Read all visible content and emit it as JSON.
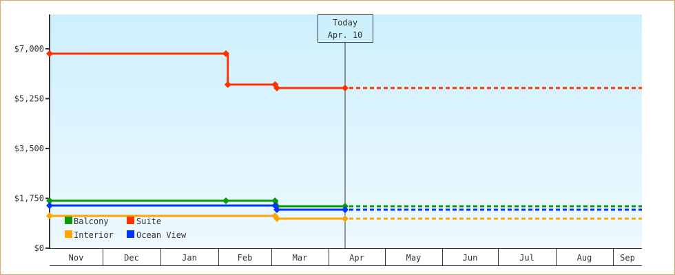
{
  "chart_data": {
    "type": "line",
    "title": "",
    "xlabel": "",
    "ylabel": "",
    "ylim": [
      0,
      7000
    ],
    "yticks": [
      0,
      1750,
      3500,
      5250,
      7000
    ],
    "ytick_labels": [
      "$0",
      "$1,750",
      "$3,500",
      "$5,250",
      "$7,000"
    ],
    "categories": [
      "Nov",
      "Dec",
      "Jan",
      "Feb",
      "Mar",
      "Apr",
      "May",
      "Jun",
      "Jul",
      "Aug",
      "Sep"
    ],
    "grid": false,
    "legend_position": "lower-left inside",
    "annotation": {
      "label_line1": "Today",
      "label_line2": "Apr. 10"
    },
    "series": [
      {
        "name": "Balcony",
        "color": "#0a9a0a",
        "points": [
          {
            "date": "Nov 1",
            "value": 1666
          },
          {
            "date": "Feb 5",
            "value": 1666
          },
          {
            "date": "Mar 3",
            "value": 1666
          },
          {
            "date": "Mar 4",
            "value": 1472
          },
          {
            "date": "Apr 10",
            "value": 1472
          }
        ],
        "projection": 1472
      },
      {
        "name": "Suite",
        "color": "#ff3300",
        "points": [
          {
            "date": "Nov 1",
            "value": 6831
          },
          {
            "date": "Feb 5",
            "value": 6831
          },
          {
            "date": "Feb 6",
            "value": 5745
          },
          {
            "date": "Mar 3",
            "value": 5745
          },
          {
            "date": "Mar 4",
            "value": 5624
          },
          {
            "date": "Apr 10",
            "value": 5624
          }
        ],
        "projection": 5624
      },
      {
        "name": "Interior",
        "color": "#ffa500",
        "points": [
          {
            "date": "Nov 1",
            "value": 1134
          },
          {
            "date": "Mar 3",
            "value": 1134
          },
          {
            "date": "Mar 4",
            "value": 1038
          },
          {
            "date": "Apr 10",
            "value": 1038
          }
        ],
        "projection": 1038
      },
      {
        "name": "Ocean View",
        "color": "#0033ff",
        "points": [
          {
            "date": "Nov 1",
            "value": 1497
          },
          {
            "date": "Mar 3",
            "value": 1497
          },
          {
            "date": "Mar 4",
            "value": 1352
          },
          {
            "date": "Apr 10",
            "value": 1352
          }
        ],
        "projection": 1352
      }
    ]
  },
  "legend": {
    "items": [
      {
        "label": "Balcony",
        "color": "#0a9a0a"
      },
      {
        "label": "Suite",
        "color": "#ff3300"
      },
      {
        "label": "Interior",
        "color": "#ffa500"
      },
      {
        "label": "Ocean View",
        "color": "#0033ff"
      }
    ]
  },
  "today": {
    "line1": "Today",
    "line2": "Apr. 10"
  }
}
